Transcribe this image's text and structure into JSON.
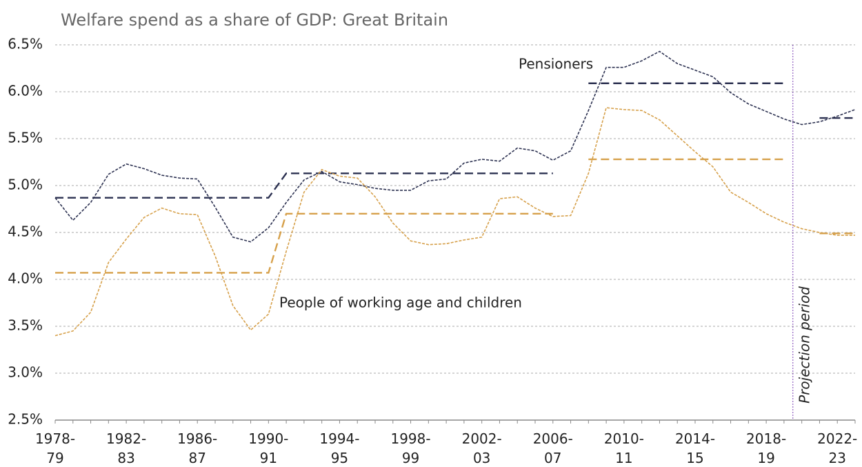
{
  "chart_data": {
    "type": "line",
    "title": "Welfare spend as a share of GDP: Great Britain",
    "categories": [
      "1978-79",
      null,
      null,
      null,
      "1982-83",
      null,
      null,
      null,
      "1986-87",
      null,
      null,
      null,
      "1990-91",
      null,
      null,
      null,
      "1994-95",
      null,
      null,
      null,
      "1998-99",
      null,
      null,
      null,
      "2002-03",
      null,
      null,
      null,
      "2006-07",
      null,
      null,
      null,
      "2010-11",
      null,
      null,
      null,
      "2014-15",
      null,
      null,
      null,
      "2018-19",
      null,
      null,
      null,
      "2022-23",
      null
    ],
    "series": [
      {
        "name": "Pensioners",
        "color": "#2b3050",
        "values": [
          4.87,
          4.63,
          4.82,
          5.12,
          5.23,
          5.18,
          5.11,
          5.08,
          5.07,
          4.77,
          4.45,
          4.4,
          4.55,
          4.82,
          5.06,
          5.15,
          5.04,
          5.01,
          4.97,
          4.95,
          4.95,
          5.05,
          5.07,
          5.24,
          5.28,
          5.26,
          5.4,
          5.37,
          5.27,
          5.37,
          5.8,
          6.26,
          6.26,
          6.33,
          6.43,
          6.3,
          6.23,
          6.16,
          5.99,
          5.87,
          5.79,
          5.71,
          5.65,
          5.68,
          5.74,
          5.81
        ],
        "average_values": [
          4.87,
          4.87,
          4.87,
          4.87,
          4.87,
          4.87,
          4.87,
          4.87,
          4.87,
          4.87,
          4.87,
          4.87,
          4.87,
          5.13,
          5.13,
          5.13,
          5.13,
          5.13,
          5.13,
          5.13,
          5.13,
          5.13,
          5.13,
          5.13,
          5.13,
          5.13,
          5.13,
          5.13,
          5.13,
          null,
          6.09,
          6.09,
          6.09,
          6.09,
          6.09,
          6.09,
          6.09,
          6.09,
          6.09,
          6.09,
          6.09,
          6.09,
          null,
          5.72,
          5.72,
          5.72
        ]
      },
      {
        "name": "People of working age and children",
        "color": "#d6a04a",
        "values": [
          3.4,
          3.45,
          3.65,
          4.18,
          4.43,
          4.66,
          4.76,
          4.7,
          4.69,
          4.25,
          3.72,
          3.46,
          3.63,
          4.3,
          4.93,
          5.17,
          5.1,
          5.08,
          4.88,
          4.6,
          4.41,
          4.37,
          4.38,
          4.42,
          4.45,
          4.86,
          4.88,
          4.76,
          4.67,
          4.68,
          5.13,
          5.83,
          5.81,
          5.8,
          5.7,
          5.53,
          5.36,
          5.2,
          4.93,
          4.82,
          4.7,
          4.61,
          4.54,
          4.5,
          4.47,
          4.47
        ],
        "average_values": [
          4.07,
          4.07,
          4.07,
          4.07,
          4.07,
          4.07,
          4.07,
          4.07,
          4.07,
          4.07,
          4.07,
          4.07,
          4.07,
          4.7,
          4.7,
          4.7,
          4.7,
          4.7,
          4.7,
          4.7,
          4.7,
          4.7,
          4.7,
          4.7,
          4.7,
          4.7,
          4.7,
          4.7,
          4.7,
          null,
          5.28,
          5.28,
          5.28,
          5.28,
          5.28,
          5.28,
          5.28,
          5.28,
          5.28,
          5.28,
          5.28,
          5.28,
          null,
          4.49,
          4.49,
          4.49
        ]
      }
    ],
    "ylim": [
      2.5,
      6.5
    ],
    "yticks": [
      {
        "value": 2.5,
        "label": "2.5%"
      },
      {
        "value": 3.0,
        "label": "3.0%"
      },
      {
        "value": 3.5,
        "label": "3.5%"
      },
      {
        "value": 4.0,
        "label": "4.0%"
      },
      {
        "value": 4.5,
        "label": "4.5%"
      },
      {
        "value": 5.0,
        "label": "5.0%"
      },
      {
        "value": 5.5,
        "label": "5.5%"
      },
      {
        "value": 6.0,
        "label": "6.0%"
      },
      {
        "value": 6.5,
        "label": "6.5%"
      }
    ],
    "grid": true,
    "projection": {
      "label": "Projection period",
      "start_index": 41,
      "color": "#7b3fb5"
    }
  }
}
